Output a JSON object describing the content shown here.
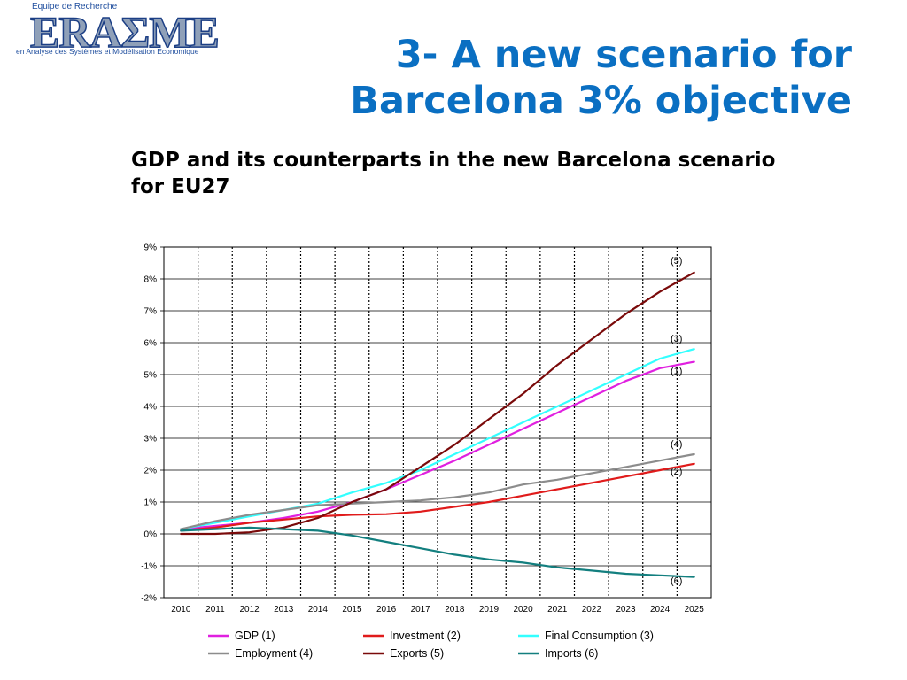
{
  "logo": {
    "top_text": "Equipe de Recherche",
    "main_text": "ERAΣME",
    "sub_text": "en Analyse des Systèmes et Modélisation Economique"
  },
  "title_line1": "3- A new scenario for",
  "title_line2": "Barcelona 3% objective",
  "subtitle_line1": "GDP and its counterparts in the new Barcelona scenario",
  "subtitle_line2": "for EU27",
  "chart_data": {
    "type": "line",
    "x": [
      2010,
      2011,
      2012,
      2013,
      2014,
      2015,
      2016,
      2017,
      2018,
      2019,
      2020,
      2021,
      2022,
      2023,
      2024,
      2025
    ],
    "x_tick_labels": [
      "2010",
      "2011",
      "2012",
      "2013",
      "2014",
      "2015",
      "2016",
      "2017",
      "2018",
      "2019",
      "2020",
      "2021",
      "2022",
      "2023",
      "2024",
      "2025"
    ],
    "ylim": [
      -2,
      9
    ],
    "y_ticks": [
      9,
      8,
      7,
      6,
      5,
      4,
      3,
      2,
      1,
      0,
      -1,
      -2
    ],
    "y_tick_labels": [
      "9%",
      "8%",
      "7%",
      "6%",
      "5%",
      "4%",
      "3%",
      "2%",
      "1%",
      "0%",
      "-1%",
      "-2%"
    ],
    "grid": "horizontal solid, vertical dotted",
    "legend_position": "bottom",
    "series": [
      {
        "name": "GDP (1)",
        "color": "#e020e0",
        "label": "(1)",
        "values": [
          0.15,
          0.25,
          0.35,
          0.5,
          0.7,
          1.0,
          1.4,
          1.85,
          2.3,
          2.8,
          3.3,
          3.8,
          4.3,
          4.8,
          5.2,
          5.4
        ]
      },
      {
        "name": "Investment (2)",
        "color": "#e01b1b",
        "label": "(2)",
        "values": [
          0.1,
          0.2,
          0.35,
          0.45,
          0.55,
          0.6,
          0.62,
          0.7,
          0.85,
          1.0,
          1.2,
          1.4,
          1.6,
          1.8,
          2.0,
          2.2
        ]
      },
      {
        "name": "Final Consumption (3)",
        "color": "#33ffff",
        "label": "(3)",
        "values": [
          0.15,
          0.35,
          0.55,
          0.75,
          0.95,
          1.3,
          1.6,
          2.0,
          2.5,
          3.0,
          3.5,
          4.0,
          4.5,
          5.0,
          5.5,
          5.8
        ]
      },
      {
        "name": "Employment (4)",
        "color": "#8c8c8c",
        "label": "(4)",
        "values": [
          0.15,
          0.4,
          0.6,
          0.75,
          0.9,
          0.95,
          1.0,
          1.05,
          1.15,
          1.3,
          1.55,
          1.7,
          1.9,
          2.1,
          2.3,
          2.5
        ]
      },
      {
        "name": "Exports (5)",
        "color": "#7a0a0a",
        "label": "(5)",
        "values": [
          0.0,
          0.0,
          0.05,
          0.2,
          0.5,
          1.0,
          1.4,
          2.1,
          2.8,
          3.6,
          4.4,
          5.3,
          6.1,
          6.9,
          7.6,
          8.2
        ]
      },
      {
        "name": "Imports (6)",
        "color": "#137f7f",
        "label": "(6)",
        "values": [
          0.1,
          0.15,
          0.2,
          0.15,
          0.1,
          -0.05,
          -0.25,
          -0.45,
          -0.65,
          -0.8,
          -0.9,
          -1.05,
          -1.15,
          -1.25,
          -1.3,
          -1.35
        ]
      }
    ],
    "legend_rows": [
      [
        "GDP (1)",
        "Investment (2)",
        "Final Consumption (3)"
      ],
      [
        "Employment (4)",
        "Exports (5)",
        "Imports (6)"
      ]
    ]
  }
}
